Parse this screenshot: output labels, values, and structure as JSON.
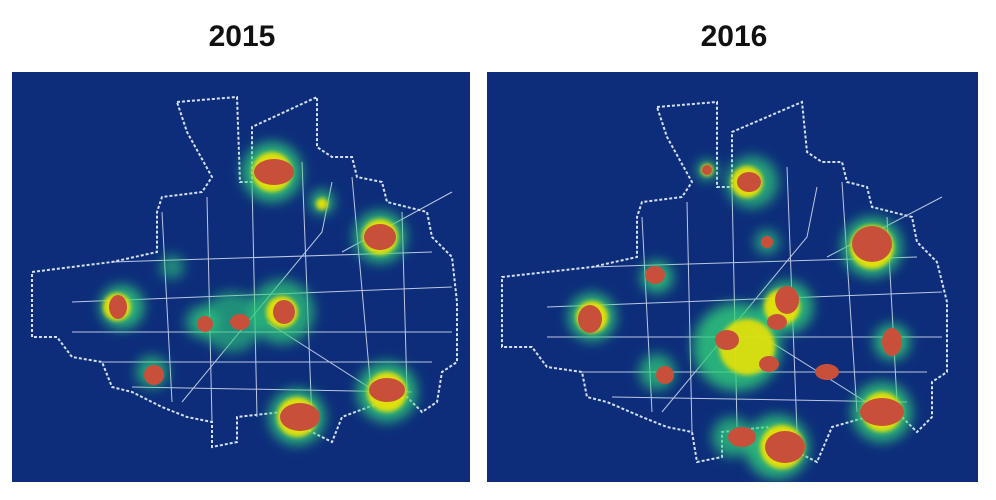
{
  "panels": [
    {
      "year": "2015"
    },
    {
      "year": "2016"
    }
  ],
  "colors": {
    "background": "#0d2d7a",
    "boundary": "#d6e0f2",
    "heat_low": "#2fd17a",
    "heat_mid": "#f2e400",
    "heat_high": "#c8503a"
  }
}
